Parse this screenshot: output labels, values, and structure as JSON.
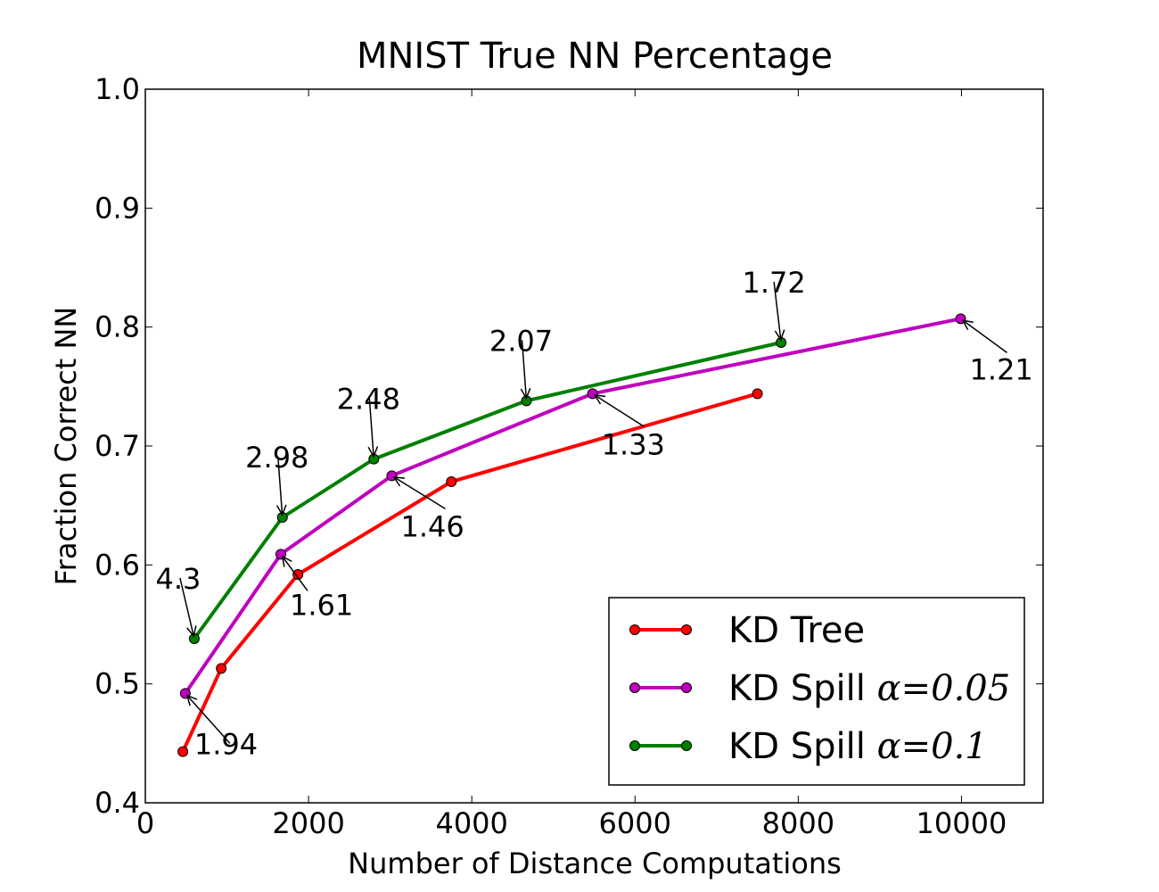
{
  "chart_data": {
    "type": "line",
    "title": "MNIST True NN Percentage",
    "xlabel": "Number of Distance Computations",
    "ylabel": "Fraction Correct NN",
    "xlim": [
      0,
      11000
    ],
    "ylim": [
      0.4,
      1.0
    ],
    "xticks": [
      0,
      2000,
      4000,
      6000,
      8000,
      10000
    ],
    "xtick_labels": [
      "0",
      "2000",
      "4000",
      "6000",
      "8000",
      "10000"
    ],
    "yticks": [
      0.4,
      0.5,
      0.6,
      0.7,
      0.8,
      0.9,
      1.0
    ],
    "ytick_labels": [
      "0.4",
      "0.5",
      "0.6",
      "0.7",
      "0.8",
      "0.9",
      "1.0"
    ],
    "grid": false,
    "legend_position": "lower-right",
    "series": [
      {
        "name": "KD Tree",
        "legend_prefix": "KD Tree",
        "legend_math": "",
        "color": "#ff0000",
        "x": [
          460,
          930,
          1870,
          3750,
          7500
        ],
        "y": [
          0.443,
          0.513,
          0.592,
          0.67,
          0.744
        ]
      },
      {
        "name": "KD Spill α=0.05",
        "legend_prefix": "KD Spill ",
        "legend_math": "α=0.05",
        "color": "#bf00bf",
        "x": [
          490,
          1660,
          3020,
          5480,
          9990
        ],
        "y": [
          0.492,
          0.609,
          0.675,
          0.744,
          0.807
        ]
      },
      {
        "name": "KD Spill α=0.1",
        "legend_prefix": "KD Spill ",
        "legend_math": "α=0.1",
        "color": "#008000",
        "x": [
          600,
          1680,
          2800,
          4670,
          7790
        ],
        "y": [
          0.538,
          0.64,
          0.689,
          0.738,
          0.787
        ]
      }
    ],
    "annotations": [
      {
        "text": "4.3",
        "series": 2,
        "point": 0
      },
      {
        "text": "2.98",
        "series": 2,
        "point": 1
      },
      {
        "text": "2.48",
        "series": 2,
        "point": 2
      },
      {
        "text": "2.07",
        "series": 2,
        "point": 3
      },
      {
        "text": "1.72",
        "series": 2,
        "point": 4
      },
      {
        "text": "1.94",
        "series": 1,
        "point": 0
      },
      {
        "text": "1.61",
        "series": 1,
        "point": 1
      },
      {
        "text": "1.46",
        "series": 1,
        "point": 2
      },
      {
        "text": "1.33",
        "series": 1,
        "point": 3
      },
      {
        "text": "1.21",
        "series": 1,
        "point": 4
      }
    ]
  }
}
